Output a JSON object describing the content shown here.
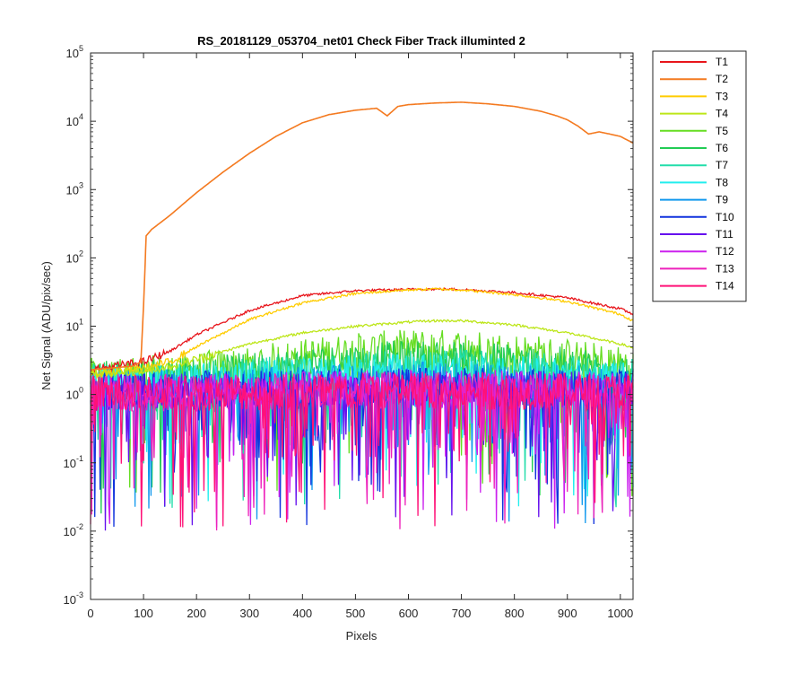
{
  "chart_data": {
    "type": "line",
    "title": "RS_20181129_053704_net01   Check Fiber     Track illuminted 2",
    "xlabel": "Pixels",
    "ylabel": "Net Signal (ADU/pix/sec)",
    "xlim": [
      0,
      1024
    ],
    "ylim": [
      0.001,
      100000
    ],
    "yscale": "log",
    "grid": false,
    "legend_position": "outside-top-right",
    "xticks": [
      0,
      100,
      200,
      300,
      400,
      500,
      600,
      700,
      800,
      900,
      1000
    ],
    "yticks": [
      {
        "base": "10",
        "exp": "-3"
      },
      {
        "base": "10",
        "exp": "-2"
      },
      {
        "base": "10",
        "exp": "-1"
      },
      {
        "base": "10",
        "exp": "0"
      },
      {
        "base": "10",
        "exp": "1"
      },
      {
        "base": "10",
        "exp": "2"
      },
      {
        "base": "10",
        "exp": "3"
      },
      {
        "base": "10",
        "exp": "4"
      },
      {
        "base": "10",
        "exp": "5"
      }
    ],
    "series": [
      {
        "name": "T1",
        "color": "#e8151b",
        "kind": "illuminated",
        "x": [
          0,
          100,
          150,
          200,
          300,
          400,
          500,
          600,
          650,
          700,
          800,
          900,
          1000,
          1024
        ],
        "y": [
          2.3,
          3.0,
          4.3,
          7.5,
          17,
          28,
          33,
          34.5,
          35,
          34.5,
          31,
          26,
          18,
          15
        ]
      },
      {
        "name": "T2",
        "color": "#f47a20",
        "kind": "main",
        "x": [
          0,
          80,
          95,
          100,
          105,
          115,
          150,
          200,
          250,
          300,
          350,
          400,
          450,
          500,
          540,
          560,
          580,
          600,
          650,
          700,
          750,
          800,
          850,
          880,
          900,
          920,
          940,
          960,
          980,
          1000,
          1024
        ],
        "y": [
          2.3,
          2.6,
          3.0,
          20,
          210,
          260,
          420,
          900,
          1800,
          3400,
          6000,
          9500,
          12500,
          14500,
          15500,
          12000,
          16500,
          17500,
          18500,
          19000,
          18000,
          16500,
          14000,
          12000,
          10500,
          8500,
          6500,
          7000,
          6500,
          6000,
          4800
        ]
      },
      {
        "name": "T3",
        "color": "#ffcc00",
        "kind": "illuminated",
        "x": [
          0,
          100,
          150,
          200,
          300,
          400,
          500,
          600,
          650,
          700,
          800,
          900,
          1000,
          1024
        ],
        "y": [
          2.0,
          2.4,
          3.0,
          5.0,
          12.5,
          22,
          30,
          34,
          35,
          34,
          29,
          23,
          15,
          12
        ]
      },
      {
        "name": "T4",
        "color": "#bde619",
        "kind": "illuminated",
        "x": [
          0,
          100,
          150,
          200,
          300,
          400,
          500,
          600,
          650,
          700,
          800,
          900,
          1000,
          1024
        ],
        "y": [
          2.0,
          2.2,
          2.6,
          3.3,
          5.5,
          8.0,
          10,
          11.5,
          12,
          12,
          10.5,
          8,
          5.5,
          4.8
        ]
      },
      {
        "name": "T5",
        "color": "#66dd22",
        "kind": "noise",
        "level": [
          2.0,
          5.5
        ]
      },
      {
        "name": "T6",
        "color": "#22cc55",
        "kind": "noise",
        "level": [
          1.9,
          3.8
        ]
      },
      {
        "name": "T7",
        "color": "#22ddaa",
        "kind": "noise",
        "level": [
          1.7,
          2.8
        ]
      },
      {
        "name": "T8",
        "color": "#22eeee",
        "kind": "noise",
        "level": [
          1.6,
          2.4
        ]
      },
      {
        "name": "T9",
        "color": "#1199ee",
        "kind": "noise",
        "level": [
          1.4,
          1.8
        ]
      },
      {
        "name": "T10",
        "color": "#1133dd",
        "kind": "noise",
        "level": [
          1.3,
          1.5
        ]
      },
      {
        "name": "T11",
        "color": "#6611ee",
        "kind": "noise",
        "level": [
          1.2,
          1.4
        ]
      },
      {
        "name": "T12",
        "color": "#cc22ee",
        "kind": "noise",
        "level": [
          1.2,
          1.4
        ]
      },
      {
        "name": "T13",
        "color": "#ee22bb",
        "kind": "noise",
        "level": [
          1.2,
          1.3
        ]
      },
      {
        "name": "T14",
        "color": "#ff1177",
        "kind": "noise",
        "level": [
          1.2,
          1.3
        ]
      }
    ]
  }
}
